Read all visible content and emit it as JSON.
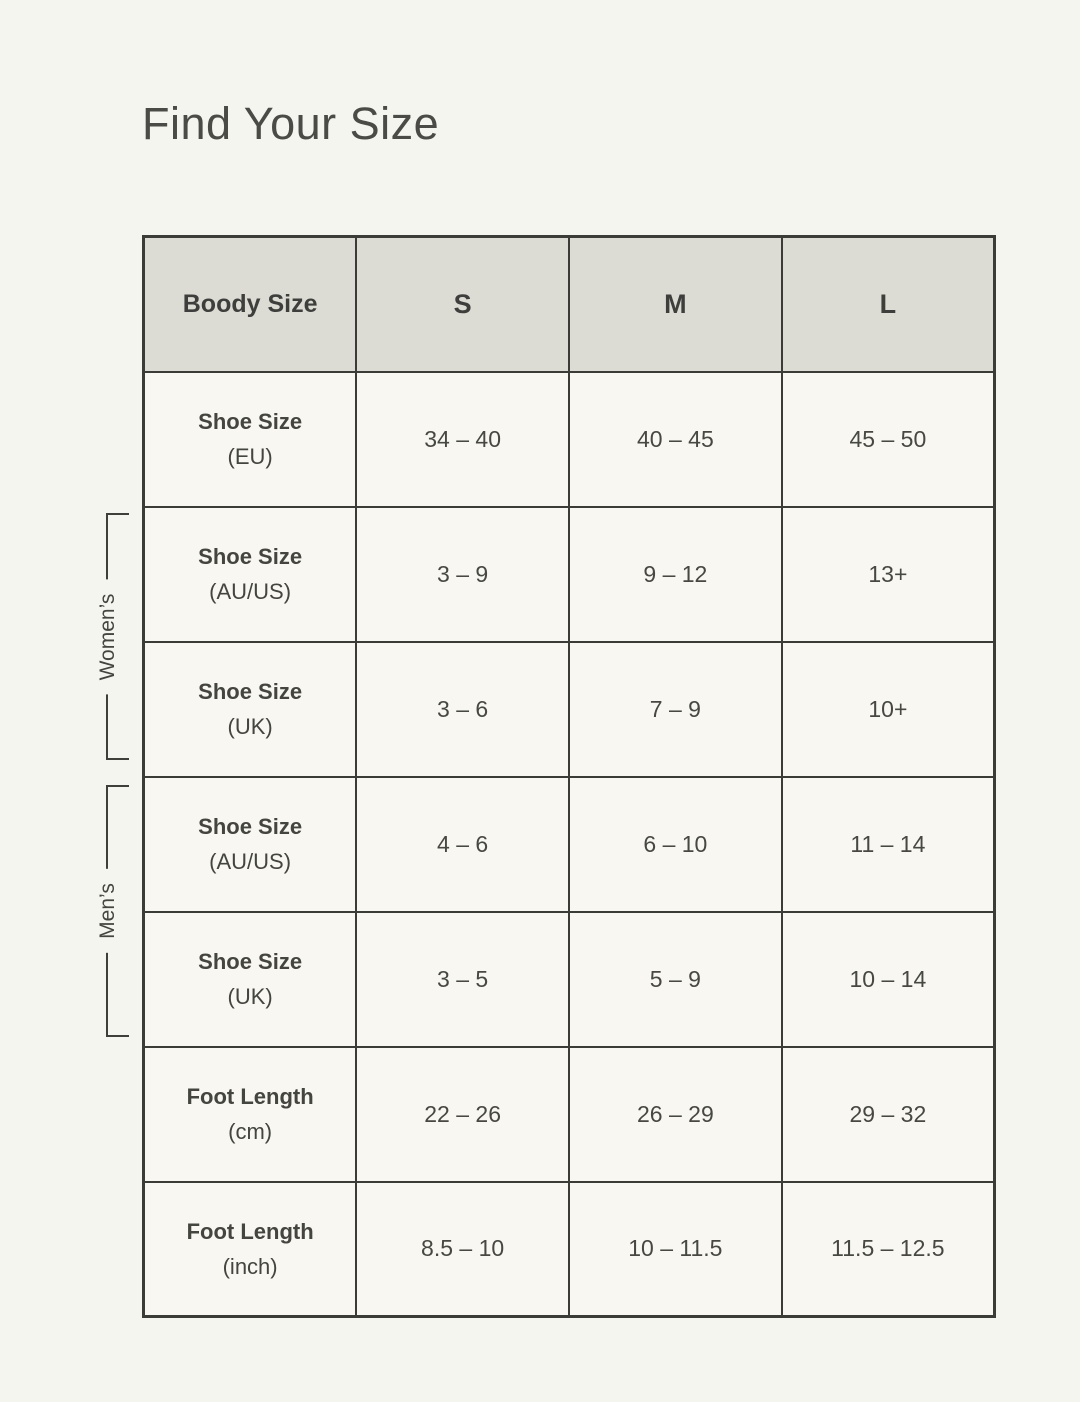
{
  "page": {
    "background": "#f5f5ef",
    "title": "Find Your Size"
  },
  "colors": {
    "header_bg": "#dcdcd4",
    "cell_bg": "#f8f7f2",
    "grid_border": "#3b3b38",
    "text": "#45453f"
  },
  "groups": {
    "womens": "Women’s",
    "mens": "Men’s"
  },
  "chart_data": {
    "type": "table",
    "title": "Find Your Size",
    "columns": [
      "Boody Size",
      "S",
      "M",
      "L"
    ],
    "rows": [
      {
        "label": "Shoe Size",
        "unit": "(EU)",
        "group": "",
        "values": [
          "34 – 40",
          "40 – 45",
          "45 – 50"
        ]
      },
      {
        "label": "Shoe Size",
        "unit": "(AU/US)",
        "group": "Women's",
        "values": [
          "3 – 9",
          "9 – 12",
          "13+"
        ]
      },
      {
        "label": "Shoe Size",
        "unit": "(UK)",
        "group": "Women's",
        "values": [
          "3 – 6",
          "7 – 9",
          "10+"
        ]
      },
      {
        "label": "Shoe Size",
        "unit": "(AU/US)",
        "group": "Men's",
        "values": [
          "4 – 6",
          "6 – 10",
          "11 – 14"
        ]
      },
      {
        "label": "Shoe Size",
        "unit": "(UK)",
        "group": "Men's",
        "values": [
          "3 – 5",
          "5 – 9",
          "10 – 14"
        ]
      },
      {
        "label": "Foot Length",
        "unit": "(cm)",
        "group": "",
        "values": [
          "22 – 26",
          "26 – 29",
          "29 – 32"
        ]
      },
      {
        "label": "Foot Length",
        "unit": "(inch)",
        "group": "",
        "values": [
          "8.5 – 10",
          "10 – 11.5",
          "11.5 – 12.5"
        ]
      }
    ]
  }
}
